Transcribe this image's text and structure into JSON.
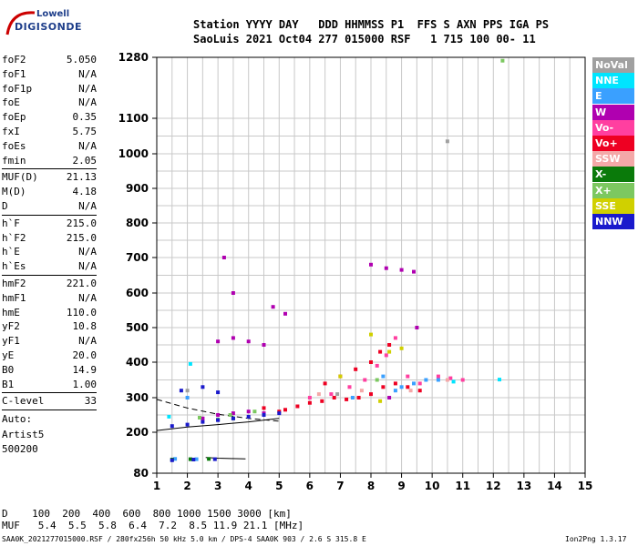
{
  "logo": {
    "line1": "Lowell",
    "line2": "DIGISONDE"
  },
  "header": {
    "row1": "Station YYYY DAY   DDD HHMMSS P1  FFS S AXN PPS IGA PS",
    "row2": "SaoLuis 2021 Oct04 277 015000 RSF   1 715 100 00- 11"
  },
  "params_group1": [
    {
      "name": "foF2",
      "value": "5.050"
    },
    {
      "name": "foF1",
      "value": "N/A"
    },
    {
      "name": "foF1p",
      "value": "N/A"
    },
    {
      "name": "foE",
      "value": "N/A"
    },
    {
      "name": "foEp",
      "value": "0.35"
    },
    {
      "name": "fxI",
      "value": "5.75"
    },
    {
      "name": "foEs",
      "value": "N/A"
    },
    {
      "name": "fmin",
      "value": "2.05"
    }
  ],
  "params_group2": [
    {
      "name": "MUF(D)",
      "value": "21.13"
    },
    {
      "name": "M(D)",
      "value": "4.18"
    },
    {
      "name": "D",
      "value": "N/A"
    }
  ],
  "params_group3": [
    {
      "name": "h`F",
      "value": "215.0"
    },
    {
      "name": "h`F2",
      "value": "215.0"
    },
    {
      "name": "h`E",
      "value": "N/A"
    },
    {
      "name": "h`Es",
      "value": "N/A"
    }
  ],
  "params_group4": [
    {
      "name": "hmF2",
      "value": "221.0"
    },
    {
      "name": "hmF1",
      "value": "N/A"
    },
    {
      "name": "hmE",
      "value": "110.0"
    },
    {
      "name": "yF2",
      "value": "10.8"
    },
    {
      "name": "yF1",
      "value": "N/A"
    },
    {
      "name": "yE",
      "value": "20.0"
    },
    {
      "name": "B0",
      "value": "14.9"
    },
    {
      "name": "B1",
      "value": "1.00"
    }
  ],
  "c_level": {
    "name": "C-level",
    "value": "33"
  },
  "autoscaling": {
    "line1": "Auto:",
    "line2": "Artist5",
    "line3": "500200"
  },
  "legend": [
    {
      "label": "NoVal",
      "color": "#a0a0a0"
    },
    {
      "label": "NNE",
      "color": "#00e5ff"
    },
    {
      "label": "E",
      "color": "#3aa0ff"
    },
    {
      "label": "W",
      "color": "#b000b0"
    },
    {
      "label": "Vo-",
      "color": "#ff3fa0"
    },
    {
      "label": "Vo+",
      "color": "#ee0022"
    },
    {
      "label": "SSW",
      "color": "#f4a8a8"
    },
    {
      "label": "X-",
      "color": "#0a7a0a"
    },
    {
      "label": "X+",
      "color": "#7cc860"
    },
    {
      "label": "SSE",
      "color": "#d0d000"
    },
    {
      "label": "NNW",
      "color": "#1a1acc"
    }
  ],
  "muf_table": {
    "d_row": "D    100  200  400  600  800 1000 1500 3000 [km]",
    "muf_row": "MUF   5.4  5.5  5.8  6.4  7.2  8.5 11.9 21.1 [MHz]"
  },
  "footer": {
    "left": "SAA0K_2021277015000.RSF / 280fx256h 50 kHz 5.0 km / DPS-4 SAA0K 903 / 2.6 S 315.8 E",
    "right": "Ion2Png 1.3.17"
  },
  "chart_data": {
    "type": "scatter",
    "title": "",
    "xlabel": "",
    "ylabel": "",
    "x_ticks": [
      1,
      2,
      3,
      4,
      5,
      6,
      7,
      8,
      9,
      10,
      11,
      12,
      13,
      14,
      15
    ],
    "y_ticks": [
      80,
      200,
      300,
      400,
      500,
      600,
      700,
      800,
      900,
      1000,
      1100,
      1280
    ],
    "xlim": [
      1,
      15
    ],
    "y_scale": "piecewise-linear (80 to 200 compressed; 1100 to 1280 compressed)",
    "legend_position": "right",
    "series": [
      {
        "name": "Vo+",
        "color": "#ee0022",
        "points": [
          [
            5.2,
            265
          ],
          [
            5.6,
            275
          ],
          [
            6.0,
            285
          ],
          [
            6.4,
            290
          ],
          [
            6.8,
            300
          ],
          [
            7.2,
            295
          ],
          [
            7.6,
            300
          ],
          [
            8.0,
            310
          ],
          [
            8.4,
            330
          ],
          [
            8.8,
            340
          ],
          [
            9.2,
            330
          ],
          [
            9.6,
            320
          ],
          [
            6.5,
            340
          ],
          [
            7.0,
            360
          ],
          [
            7.5,
            380
          ],
          [
            8.0,
            400
          ],
          [
            8.3,
            430
          ],
          [
            8.6,
            450
          ],
          [
            4.5,
            270
          ],
          [
            5.0,
            260
          ]
        ]
      },
      {
        "name": "Vo-",
        "color": "#ff3fa0",
        "points": [
          [
            6.0,
            300
          ],
          [
            6.7,
            310
          ],
          [
            7.3,
            330
          ],
          [
            7.8,
            350
          ],
          [
            8.2,
            390
          ],
          [
            8.5,
            420
          ],
          [
            8.8,
            470
          ],
          [
            9.2,
            360
          ],
          [
            9.6,
            340
          ],
          [
            10.2,
            360
          ],
          [
            10.6,
            355
          ],
          [
            11.0,
            350
          ]
        ]
      },
      {
        "name": "W",
        "color": "#b000b0",
        "points": [
          [
            3.0,
            460
          ],
          [
            3.5,
            470
          ],
          [
            4.0,
            460
          ],
          [
            4.5,
            450
          ],
          [
            2.5,
            240
          ],
          [
            3.0,
            250
          ],
          [
            3.5,
            255
          ],
          [
            4.0,
            260
          ],
          [
            4.5,
            255
          ],
          [
            8.0,
            680
          ],
          [
            8.5,
            670
          ],
          [
            9.0,
            665
          ],
          [
            9.4,
            660
          ],
          [
            3.2,
            700
          ],
          [
            3.5,
            600
          ],
          [
            4.8,
            560
          ],
          [
            5.2,
            540
          ],
          [
            8.6,
            300
          ],
          [
            9.5,
            500
          ]
        ]
      },
      {
        "name": "E",
        "color": "#3aa0ff",
        "points": [
          [
            8.8,
            320
          ],
          [
            9.0,
            330
          ],
          [
            9.4,
            340
          ],
          [
            9.8,
            350
          ],
          [
            10.2,
            350
          ],
          [
            7.4,
            300
          ],
          [
            8.4,
            360
          ],
          [
            2.0,
            300
          ],
          [
            1.6,
            122
          ],
          [
            2.3,
            121
          ]
        ]
      },
      {
        "name": "NNE",
        "color": "#00e5ff",
        "points": [
          [
            1.4,
            245
          ],
          [
            2.1,
            395
          ],
          [
            12.2,
            351
          ],
          [
            10.7,
            345
          ]
        ]
      },
      {
        "name": "X-",
        "color": "#0a7a0a",
        "points": [
          [
            1.5,
            120
          ],
          [
            2.1,
            121
          ],
          [
            2.7,
            122
          ],
          [
            3.0,
            236
          ],
          [
            3.5,
            240
          ]
        ]
      },
      {
        "name": "X+",
        "color": "#7cc860",
        "points": [
          [
            2.4,
            242
          ],
          [
            3.4,
            250
          ],
          [
            4.2,
            260
          ],
          [
            8.2,
            350
          ],
          [
            12.3,
            1270
          ]
        ]
      },
      {
        "name": "SSE",
        "color": "#d0d000",
        "points": [
          [
            7.0,
            360
          ],
          [
            8.0,
            480
          ],
          [
            8.6,
            430
          ],
          [
            9.0,
            440
          ],
          [
            8.3,
            290
          ]
        ]
      },
      {
        "name": "NNW",
        "color": "#1a1acc",
        "points": [
          [
            1.5,
            218
          ],
          [
            2.0,
            222
          ],
          [
            2.5,
            230
          ],
          [
            3.0,
            235
          ],
          [
            3.5,
            240
          ],
          [
            4.0,
            245
          ],
          [
            4.5,
            250
          ],
          [
            5.0,
            255
          ],
          [
            1.8,
            320
          ],
          [
            2.5,
            330
          ],
          [
            3.0,
            315
          ],
          [
            1.5,
            118
          ],
          [
            2.2,
            120
          ],
          [
            2.9,
            121
          ]
        ]
      },
      {
        "name": "SSW",
        "color": "#f4a8a8",
        "points": [
          [
            6.3,
            310
          ],
          [
            7.7,
            320
          ],
          [
            9.3,
            320
          ],
          [
            10.5,
            350
          ]
        ]
      },
      {
        "name": "NoVal",
        "color": "#a0a0a0",
        "points": [
          [
            2.0,
            320
          ],
          [
            6.9,
            310
          ],
          [
            10.5,
            1035
          ]
        ]
      }
    ],
    "traces": [
      {
        "name": "solid-trace",
        "style": "solid",
        "points": [
          [
            1.0,
            205
          ],
          [
            2.0,
            215
          ],
          [
            3.0,
            222
          ],
          [
            4.0,
            230
          ],
          [
            5.0,
            240
          ]
        ]
      },
      {
        "name": "dashed-trace",
        "style": "dashed",
        "points": [
          [
            1.0,
            295
          ],
          [
            2.0,
            270
          ],
          [
            3.0,
            252
          ],
          [
            4.0,
            240
          ],
          [
            5.0,
            232
          ]
        ]
      },
      {
        "name": "e-layer-trace",
        "style": "solid",
        "points": [
          [
            2.6,
            126
          ],
          [
            3.0,
            124
          ],
          [
            3.4,
            123
          ],
          [
            3.9,
            122
          ]
        ]
      }
    ]
  }
}
